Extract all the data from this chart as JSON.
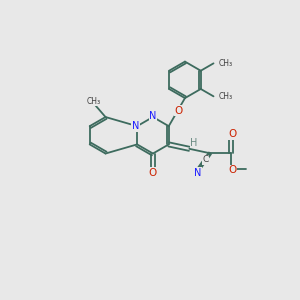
{
  "bg_color": "#e8e8e8",
  "bond_color": "#3d6b5e",
  "N_color": "#1a1aff",
  "O_color": "#cc2200",
  "C_color": "#404040",
  "H_color": "#6a8a82",
  "lw": 1.3,
  "figsize": [
    3.0,
    3.0
  ],
  "dpi": 100,
  "xlim": [
    0,
    10
  ],
  "ylim": [
    0,
    10
  ]
}
